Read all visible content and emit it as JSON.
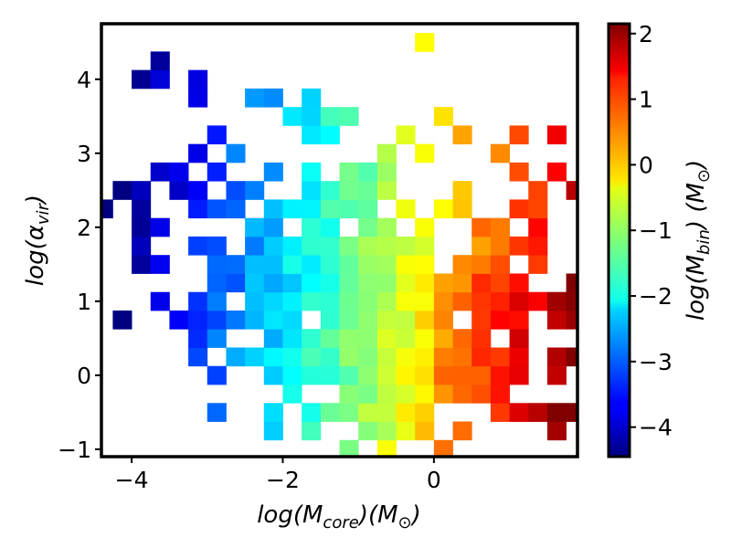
{
  "chart_data": {
    "type": "heatmap",
    "title": "",
    "xlabel": "log(M_core)(M_⊙)",
    "ylabel": "log(α_vir)",
    "colorbar_label": "log(M_bin) (M_⊙)",
    "xlim": [
      -4.4,
      1.9
    ],
    "ylim": [
      -1.1,
      4.75
    ],
    "clim": [
      -4.45,
      2.15
    ],
    "colormap": "jet",
    "bin_width": 0.25,
    "x_ticks": [
      -4,
      -2,
      0
    ],
    "x_tick_labels": [
      "−4",
      "−2",
      "0"
    ],
    "y_ticks": [
      -1,
      0,
      1,
      2,
      3,
      4
    ],
    "y_tick_labels": [
      "−1",
      "0",
      "1",
      "2",
      "3",
      "4"
    ],
    "c_ticks": [
      -4,
      -3,
      -2,
      -1,
      0,
      1,
      2
    ],
    "c_tick_labels": [
      "−4",
      "−3",
      "−2",
      "−1",
      "0",
      "1",
      "2"
    ],
    "grid": false,
    "description": "2D histogram; cell color encodes log(M_bin) which increases roughly with log(M_core); occupied region forms a cloud spanning x ≈ −4.3..1.8, y ≈ −1..4.7"
  }
}
